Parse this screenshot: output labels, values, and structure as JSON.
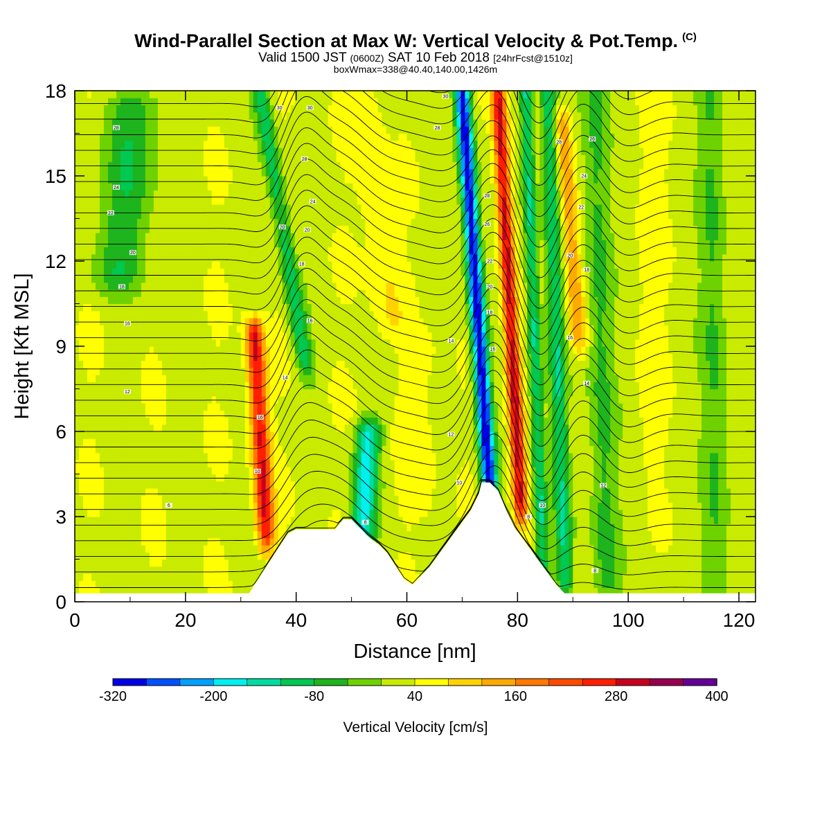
{
  "header": {
    "title": "Wind-Parallel Section at Max W: Vertical Velocity & Pot.Temp.",
    "copyright": "(C)",
    "subtitle_main": "Valid 1500 JST",
    "subtitle_utc": "(0600Z)",
    "subtitle_date": "SAT 10 Feb 2018",
    "subtitle_forecast": "[24hrFcst@1510z]",
    "box_info": "boxWmax=338@40.40,140.00,1426m"
  },
  "chart_data": {
    "type": "heatmap",
    "xlabel": "Distance [nm]",
    "ylabel": "Height [Kft MSL]",
    "xlim": [
      0,
      123
    ],
    "ylim": [
      0,
      18
    ],
    "x_ticks": [
      "0",
      "20",
      "40",
      "60",
      "80",
      "100",
      "120"
    ],
    "y_ticks": [
      "0",
      "3",
      "6",
      "9",
      "12",
      "15",
      "18"
    ],
    "colorbar": {
      "label": "Vertical Velocity [cm/s]",
      "tick_labels": [
        "-320",
        "-200",
        "-80",
        "40",
        "160",
        "280",
        "400"
      ],
      "range": [
        -320,
        400
      ],
      "step": 40,
      "colors": [
        "#0000e6",
        "#0050ff",
        "#00a0ff",
        "#00f0f0",
        "#00dca0",
        "#00c850",
        "#1eb41e",
        "#6ed200",
        "#c8eb00",
        "#ffff00",
        "#ffd200",
        "#ffaa00",
        "#ff7800",
        "#ff4b00",
        "#ff1e00",
        "#c8001e",
        "#960050",
        "#640096"
      ]
    },
    "terrain_kft": [
      [
        0,
        0.3
      ],
      [
        30,
        0.3
      ],
      [
        31.5,
        0.3
      ],
      [
        32.5,
        0.6
      ],
      [
        33.5,
        0.9
      ],
      [
        34.5,
        1.2
      ],
      [
        35.5,
        1.5
      ],
      [
        36.5,
        1.8
      ],
      [
        37.5,
        2.1
      ],
      [
        38.5,
        2.4
      ],
      [
        40,
        2.55
      ],
      [
        47,
        2.55
      ],
      [
        48.5,
        2.9
      ],
      [
        50,
        2.9
      ],
      [
        51.5,
        2.6
      ],
      [
        53,
        2.3
      ],
      [
        55,
        2.0
      ],
      [
        56.5,
        1.7
      ],
      [
        57.5,
        1.4
      ],
      [
        58.5,
        1.1
      ],
      [
        59.5,
        0.8
      ],
      [
        61,
        0.6
      ],
      [
        62.5,
        0.9
      ],
      [
        64,
        1.2
      ],
      [
        65.5,
        1.6
      ],
      [
        67,
        2.0
      ],
      [
        68.5,
        2.4
      ],
      [
        70,
        2.8
      ],
      [
        71.5,
        3.2
      ],
      [
        73,
        3.8
      ],
      [
        73.5,
        4.2
      ],
      [
        75,
        4.2
      ],
      [
        76.5,
        3.9
      ],
      [
        78,
        3.2
      ],
      [
        79.5,
        2.6
      ],
      [
        81,
        2.2
      ],
      [
        82.5,
        1.8
      ],
      [
        84,
        1.4
      ],
      [
        85.5,
        1.0
      ],
      [
        87,
        0.6
      ],
      [
        88.5,
        0.3
      ],
      [
        123,
        0.3
      ]
    ],
    "velocity_features": [
      {
        "x": 75,
        "w": 1.4,
        "x_tilt": -5,
        "top_kft": 18,
        "base_kft": 3.8,
        "w_cms": -320
      },
      {
        "x": 80.5,
        "w": 1.3,
        "x_tilt": -4,
        "top_kft": 18,
        "base_kft": 3.5,
        "w_cms": 300
      },
      {
        "x": 34.5,
        "w": 1.6,
        "x_tilt": -2,
        "top_kft": 9.5,
        "base_kft": 2.5,
        "w_cms": 290
      },
      {
        "x": 52,
        "w": 2.2,
        "x_tilt": 1,
        "top_kft": 6,
        "base_kft": 2.4,
        "w_cms": -170
      },
      {
        "x": 41.5,
        "w": 1.6,
        "x_tilt": -8,
        "top_kft": 18,
        "base_kft": 8.5,
        "w_cms": -100
      },
      {
        "x": 88.5,
        "w": 1.5,
        "x_tilt": -3,
        "top_kft": 18,
        "base_kft": 0.8,
        "w_cms": -110
      },
      {
        "x": 84.5,
        "w": 1.2,
        "x_tilt": -3,
        "top_kft": 18,
        "base_kft": 1.3,
        "w_cms": -130
      },
      {
        "x": 91,
        "w": 1.6,
        "x_tilt": -3,
        "top_kft": 17,
        "base_kft": 9.5,
        "w_cms": 160
      },
      {
        "x": 57,
        "w": 3.0,
        "x_tilt": -5,
        "top_kft": 18,
        "base_kft": 10,
        "w_cms": 80
      },
      {
        "x": 62,
        "w": 3.5,
        "x_tilt": 0,
        "top_kft": 9,
        "base_kft": 3.5,
        "w_cms": 60
      },
      {
        "x": 96,
        "w": 2.5,
        "x_tilt": -2,
        "top_kft": 18,
        "base_kft": 0.5,
        "w_cms": -60
      },
      {
        "x": 116,
        "w": 2.5,
        "x_tilt": -1,
        "top_kft": 18,
        "base_kft": 0.5,
        "w_cms": -50
      },
      {
        "x": 104,
        "w": 2.5,
        "x_tilt": 0,
        "top_kft": 18,
        "base_kft": 5.5,
        "w_cms": 60
      },
      {
        "x": 8,
        "w": 5.0,
        "x_tilt": 3,
        "top_kft": 17.5,
        "base_kft": 11.5,
        "w_cms": -70
      }
    ],
    "isentropes": {
      "label_values": [
        "6",
        "8",
        "10",
        "12",
        "14",
        "16",
        "18",
        "20",
        "22",
        "24",
        "26",
        "28",
        "30"
      ],
      "labels": [
        {
          "text": "6",
          "x": 17,
          "y": 3.4
        },
        {
          "text": "10",
          "x": 33,
          "y": 4.6
        },
        {
          "text": "12",
          "x": 9.5,
          "y": 7.4
        },
        {
          "text": "14",
          "x": 38,
          "y": 7.9
        },
        {
          "text": "16",
          "x": 33.5,
          "y": 6.5
        },
        {
          "text": "16",
          "x": 9.5,
          "y": 9.8
        },
        {
          "text": "18",
          "x": 8.5,
          "y": 11.1
        },
        {
          "text": "20",
          "x": 10.5,
          "y": 12.3
        },
        {
          "text": "22",
          "x": 6.5,
          "y": 13.7
        },
        {
          "text": "24",
          "x": 7.5,
          "y": 14.6
        },
        {
          "text": "28",
          "x": 7.5,
          "y": 16.7
        },
        {
          "text": "30",
          "x": 37,
          "y": 17.4
        },
        {
          "text": "30",
          "x": 42.5,
          "y": 17.4
        },
        {
          "text": "28",
          "x": 41.5,
          "y": 15.6
        },
        {
          "text": "24",
          "x": 43,
          "y": 14.1
        },
        {
          "text": "20",
          "x": 42,
          "y": 13.1
        },
        {
          "text": "20",
          "x": 37.5,
          "y": 13.2
        },
        {
          "text": "18",
          "x": 41,
          "y": 11.9
        },
        {
          "text": "16",
          "x": 42.5,
          "y": 9.9
        },
        {
          "text": "14",
          "x": 68,
          "y": 9.2
        },
        {
          "text": "12",
          "x": 68,
          "y": 5.9
        },
        {
          "text": "10",
          "x": 69.5,
          "y": 4.2
        },
        {
          "text": "8",
          "x": 52.5,
          "y": 2.8
        },
        {
          "text": "30",
          "x": 67,
          "y": 17.8
        },
        {
          "text": "28",
          "x": 65.5,
          "y": 16.7
        },
        {
          "text": "28",
          "x": 74.5,
          "y": 14.3
        },
        {
          "text": "26",
          "x": 74.5,
          "y": 13.3
        },
        {
          "text": "22",
          "x": 75,
          "y": 12.0
        },
        {
          "text": "20",
          "x": 75,
          "y": 11.1
        },
        {
          "text": "18",
          "x": 75,
          "y": 10.2
        },
        {
          "text": "16",
          "x": 75.5,
          "y": 8.9
        },
        {
          "text": "28",
          "x": 87.5,
          "y": 16.2
        },
        {
          "text": "26",
          "x": 93.5,
          "y": 16.3
        },
        {
          "text": "24",
          "x": 92,
          "y": 15.0
        },
        {
          "text": "22",
          "x": 91.5,
          "y": 13.9
        },
        {
          "text": "20",
          "x": 89.5,
          "y": 12.2
        },
        {
          "text": "18",
          "x": 92.5,
          "y": 11.7
        },
        {
          "text": "16",
          "x": 89.5,
          "y": 9.3
        },
        {
          "text": "14",
          "x": 92.5,
          "y": 7.7
        },
        {
          "text": "12",
          "x": 95.5,
          "y": 4.1
        },
        {
          "text": "10",
          "x": 84.5,
          "y": 3.4
        },
        {
          "text": "8",
          "x": 82,
          "y": 3.0
        },
        {
          "text": "8",
          "x": 94,
          "y": 1.1
        }
      ]
    }
  }
}
